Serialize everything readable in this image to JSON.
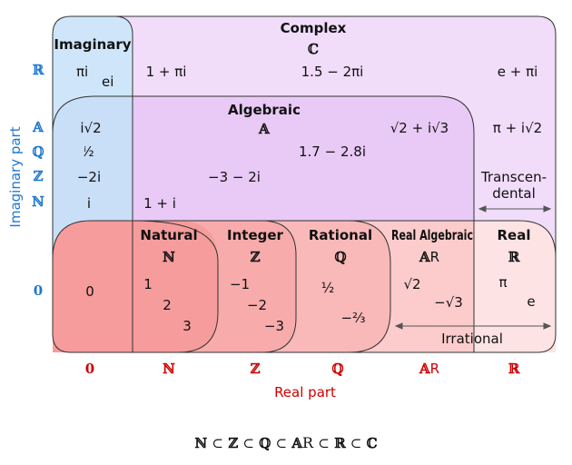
{
  "sets": {
    "complex": {
      "name": "Complex",
      "symbol": "ℂ"
    },
    "imaginary": {
      "name": "Imaginary"
    },
    "algebraic": {
      "name": "Algebraic",
      "symbol": "𝔸"
    },
    "natural": {
      "name": "Natural",
      "symbol": "ℕ"
    },
    "integer": {
      "name": "Integer",
      "symbol": "ℤ"
    },
    "rational": {
      "name": "Rational",
      "symbol": "ℚ"
    },
    "real_algebraic": {
      "name": "Real Algebraic",
      "symbol": "𝔸",
      "subscript": "R"
    },
    "real": {
      "name": "Real",
      "symbol": "ℝ"
    },
    "transcendental_line1": "Transcen-",
    "transcendental_line2": "dental",
    "irrational": "Irrational"
  },
  "examples": {
    "pi_i": "πi",
    "e_i": "ei",
    "one_plus_pi_i": "1 + πi",
    "one5_minus_2pi_i": "1.5 − 2πi",
    "e_plus_pi_i": "e + πi",
    "i_sqrt2": "i√2",
    "i_half": "ⁱ⁄₂",
    "minus_2i": "−2i",
    "i": "i",
    "sqrt2_plus_isqrt3": "√2 + i√3",
    "pi_plus_isqrt2": "π + i√2",
    "c17": "1.7 − 2.8i",
    "c3": "−3 − 2i",
    "one_plus_i": "1 + i",
    "zero": "0",
    "one": "1",
    "two": "2",
    "three": "3",
    "minus1": "−1",
    "minus2": "−2",
    "minus3": "−3",
    "half": "½",
    "minus_two_thirds": "−²⁄₃",
    "sqrt2": "√2",
    "minus_sqrt3": "−√3",
    "pi": "π",
    "e": "e"
  },
  "axes": {
    "imag_label": "Imaginary part",
    "real_label": "Real part",
    "imag_ticks": [
      "ℝ",
      "𝔸",
      "ℚ",
      "ℤ",
      "ℕ",
      "0"
    ],
    "real_ticks": [
      "0",
      "ℕ",
      "ℤ",
      "ℚ",
      "𝔸",
      "ℝ"
    ],
    "real_tick_sub": "R"
  },
  "chain": [
    "ℕ",
    "⊂",
    "ℤ",
    "⊂",
    "ℚ",
    "⊂",
    "𝔸",
    "⊂",
    "ℝ",
    "⊂",
    "ℂ"
  ],
  "chain_sub": "R",
  "colors": {
    "complex": "#f1dcfa",
    "imaginary": "#cfe6fa",
    "algebraic": "#e8c6f3",
    "real": "#fde3e3",
    "algebraic_real": "#fccccc",
    "rational": "#f9b9b9",
    "natural": "#f69c9c",
    "axis_blue": "#1f77d0",
    "axis_red": "#cc0000"
  }
}
